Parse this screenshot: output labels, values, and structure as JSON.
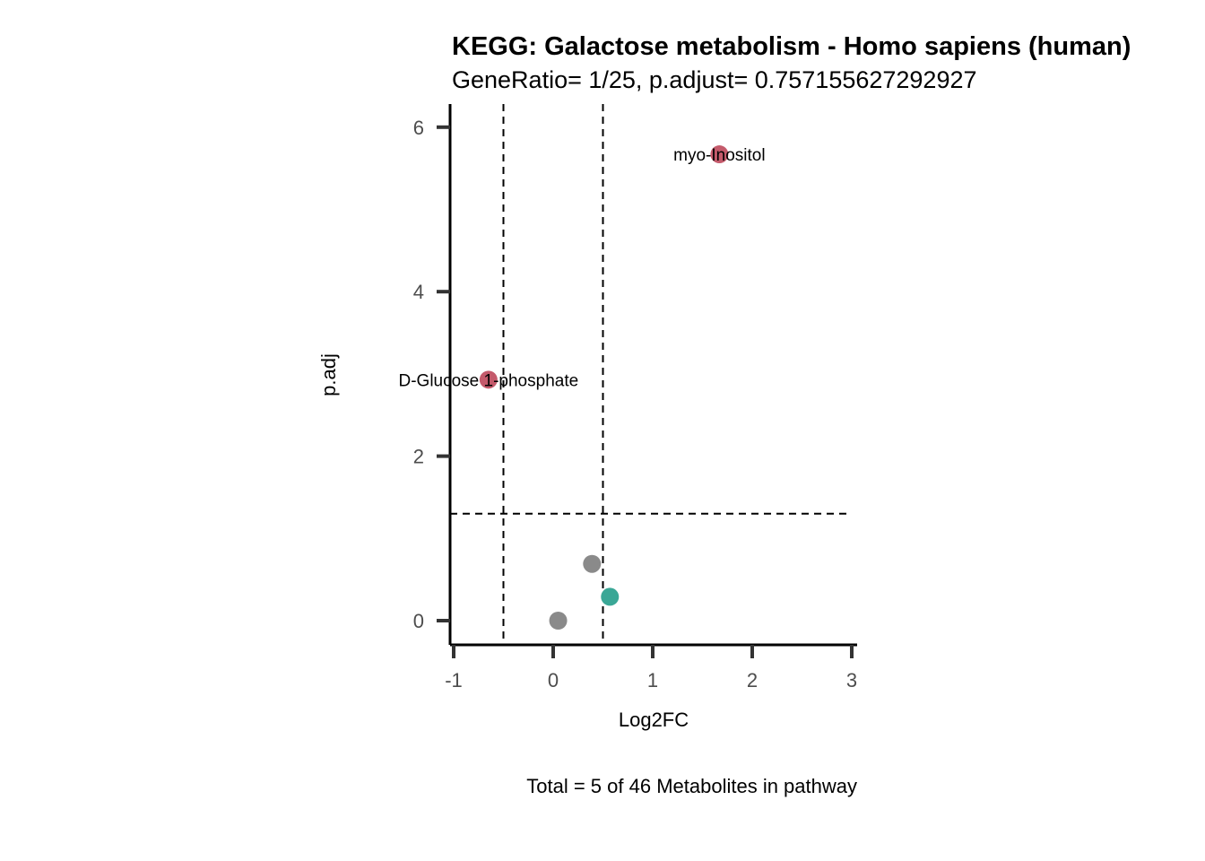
{
  "chart_data": {
    "type": "scatter",
    "title": "KEGG: Galactose metabolism - Homo sapiens (human)",
    "subtitle": "GeneRatio= 1/25, p.adjust= 0.757155627292927",
    "caption": "Total = 5 of 46 Metabolites in pathway",
    "xlabel": "Log2FC",
    "ylabel": "p.adj",
    "xlim": [
      -1,
      3
    ],
    "ylim": [
      0,
      6
    ],
    "x_ticks": [
      -1,
      0,
      1,
      2,
      3
    ],
    "x_tick_labels": [
      "-1",
      "0",
      "1",
      "2",
      "3"
    ],
    "y_ticks": [
      0,
      2,
      4,
      6
    ],
    "y_tick_labels": [
      "0",
      "2",
      "4",
      "6"
    ],
    "grid": false,
    "legend": "none",
    "thresholds": {
      "log2fc": [
        -0.5,
        0.5
      ],
      "padj": 1.3
    },
    "colors": {
      "significant": "#c45a6b",
      "up_nonsig": "#3aa796",
      "not_significant": "#8a8a8a",
      "axis": "#000000",
      "threshold_line": "#000000"
    },
    "points": [
      {
        "label": "myo-Inositol",
        "x": 1.67,
        "y": 5.67,
        "category": "significant"
      },
      {
        "label": "D-Glucose 1-phosphate",
        "x": -0.65,
        "y": 2.93,
        "category": "significant"
      },
      {
        "label": "",
        "x": 0.39,
        "y": 0.69,
        "category": "not_significant"
      },
      {
        "label": "",
        "x": 0.57,
        "y": 0.29,
        "category": "up_nonsig"
      },
      {
        "label": "",
        "x": 0.05,
        "y": 0.0,
        "category": "not_significant"
      }
    ]
  }
}
